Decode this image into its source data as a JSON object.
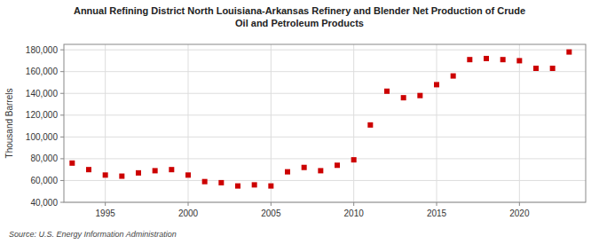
{
  "chart_data": {
    "type": "scatter",
    "title": "Annual Refining District North Louisiana-Arkansas Refinery and Blender Net Production of Crude\nOil and Petroleum Products",
    "ylabel": "Thousand Barrels",
    "source": "Source: U.S. Energy Information Administration",
    "x": [
      1993,
      1994,
      1995,
      1996,
      1997,
      1998,
      1999,
      2000,
      2001,
      2002,
      2003,
      2004,
      2005,
      2006,
      2007,
      2008,
      2009,
      2010,
      2011,
      2012,
      2013,
      2014,
      2015,
      2016,
      2017,
      2018,
      2019,
      2020,
      2021,
      2022,
      2023
    ],
    "values": [
      76000,
      70000,
      65000,
      64000,
      67000,
      69000,
      70000,
      65000,
      59000,
      58000,
      55000,
      56000,
      55000,
      68000,
      72000,
      69000,
      74000,
      79000,
      111000,
      142000,
      136000,
      138000,
      148000,
      156000,
      171000,
      172000,
      171000,
      170000,
      163000,
      163000,
      178000
    ],
    "color": "#cc0000",
    "marker": "square",
    "xlim": [
      1992.5,
      2024
    ],
    "xticks": [
      1995,
      2000,
      2005,
      2010,
      2015,
      2020
    ],
    "ylim": [
      40000,
      185000
    ],
    "yticks": [
      {
        "value": 40000,
        "label": "40,000"
      },
      {
        "value": 60000,
        "label": "60,000"
      },
      {
        "value": 80000,
        "label": "80,000"
      },
      {
        "value": 100000,
        "label": "100,000"
      },
      {
        "value": 120000,
        "label": "120,000"
      },
      {
        "value": 140000,
        "label": "140,000"
      },
      {
        "value": 160000,
        "label": "160,000"
      },
      {
        "value": 180000,
        "label": "180,000"
      }
    ],
    "grid": true
  }
}
